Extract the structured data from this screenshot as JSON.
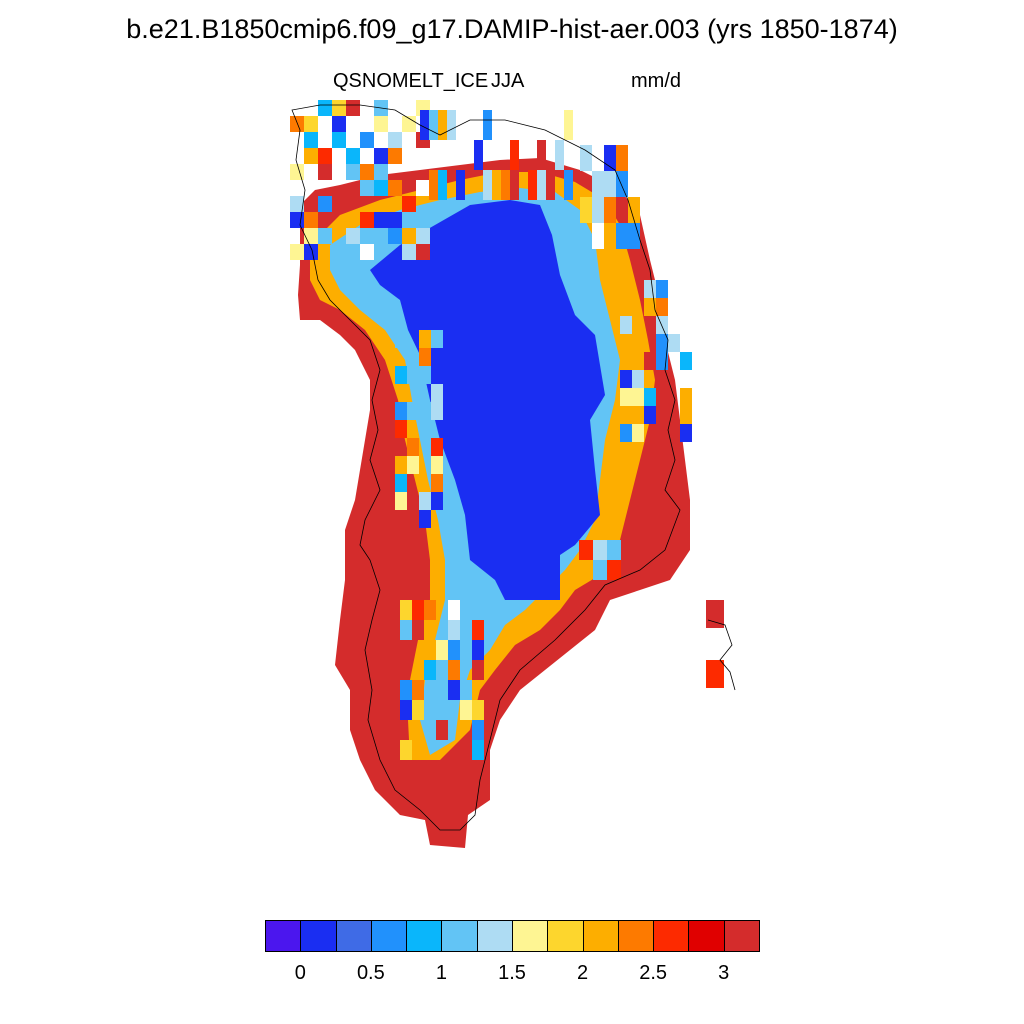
{
  "header": {
    "title": "b.e21.B1850cmip6.f09_g17.DAMIP-hist-aer.003 (yrs 1850-1874)",
    "left_label": "QSNOMELT_ICE",
    "center_label": "JJA",
    "right_label": "mm/d"
  },
  "colorbar": {
    "colors": [
      "#4b16ee",
      "#1a2ef2",
      "#3f6be6",
      "#2191fc",
      "#0ab6fb",
      "#62c4f5",
      "#aedcf3",
      "#fef593",
      "#fdd62d",
      "#fdae00",
      "#fd7a00",
      "#fd2a00",
      "#e00000",
      "#d42c2c"
    ],
    "labels": [
      "0",
      "0.5",
      "1",
      "1.5",
      "2",
      "2.5",
      "3"
    ]
  },
  "map": {
    "region": "Greenland",
    "interior_color": "#1a2ef2",
    "margin_color": "#d42c2c",
    "coastline_color": "#000000"
  }
}
